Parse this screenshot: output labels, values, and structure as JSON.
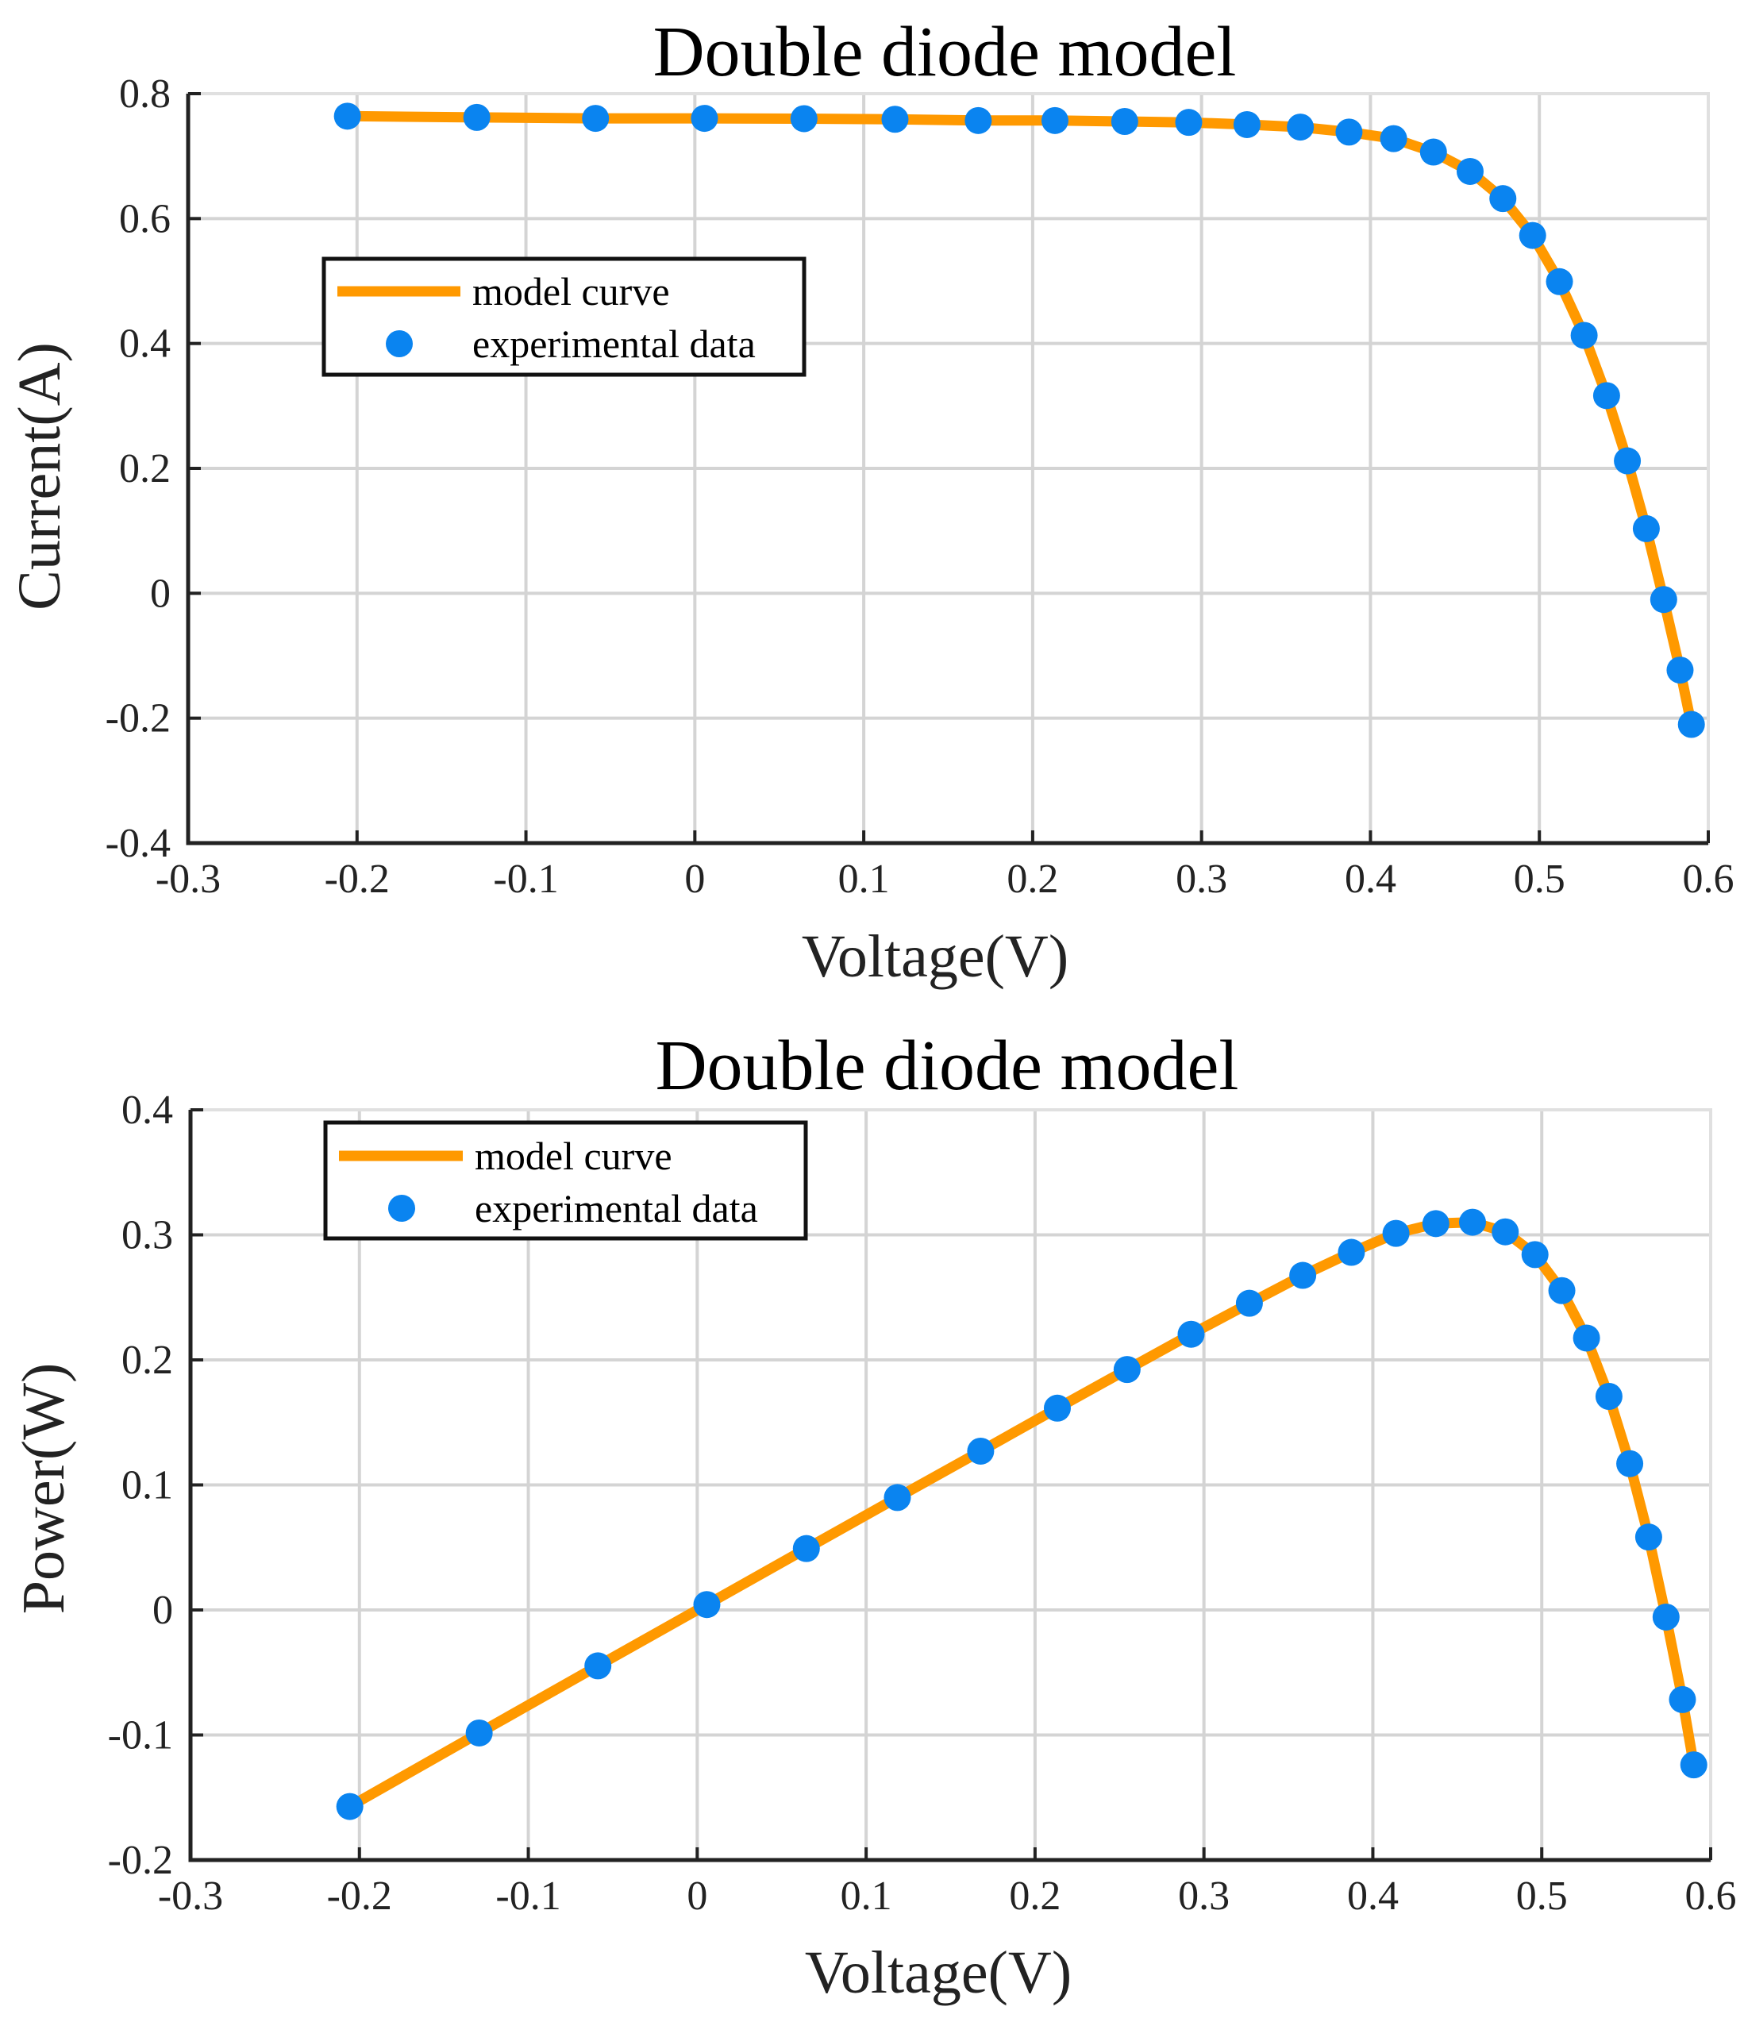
{
  "colors": {
    "curve": "#ff9900",
    "points": "#0a84f0"
  },
  "chart_data": [
    {
      "type": "line",
      "title": "Double diode model",
      "xlabel": "Voltage(V)",
      "ylabel": "Current(A)",
      "xlim": [
        -0.3,
        0.6
      ],
      "ylim": [
        -0.4,
        0.8
      ],
      "xticks": [
        -0.3,
        -0.2,
        -0.1,
        0,
        0.1,
        0.2,
        0.3,
        0.4,
        0.5,
        0.6
      ],
      "yticks": [
        -0.4,
        -0.2,
        0,
        0.2,
        0.4,
        0.6,
        0.8
      ],
      "xtick_labels": [
        "-0.3",
        "-0.2",
        "-0.1",
        "0",
        "0.1",
        "0.2",
        "0.3",
        "0.4",
        "0.5",
        "0.6"
      ],
      "ytick_labels": [
        "-0.4",
        "-0.2",
        "0",
        "0.2",
        "0.4",
        "0.6",
        "0.8"
      ],
      "grid": true,
      "legend_position": "upper-left",
      "legend": [
        "model curve",
        "experimental data"
      ],
      "series": [
        {
          "name": "model curve",
          "x": [
            -0.2057,
            -0.1291,
            -0.0588,
            0.0057,
            0.0646,
            0.1185,
            0.1678,
            0.2132,
            0.2545,
            0.2924,
            0.3269,
            0.3585,
            0.3873,
            0.4137,
            0.4373,
            0.459,
            0.4784,
            0.496,
            0.5119,
            0.5265,
            0.5398,
            0.5521,
            0.5633,
            0.5736,
            0.5833,
            0.59
          ],
          "y": [
            0.764,
            0.762,
            0.7605,
            0.7605,
            0.76,
            0.759,
            0.757,
            0.757,
            0.7555,
            0.754,
            0.7505,
            0.7465,
            0.7385,
            0.728,
            0.7065,
            0.6755,
            0.632,
            0.573,
            0.499,
            0.413,
            0.3165,
            0.212,
            0.1035,
            -0.01,
            -0.123,
            -0.21
          ]
        },
        {
          "name": "experimental data",
          "x": [
            -0.2057,
            -0.1291,
            -0.0588,
            0.0057,
            0.0646,
            0.1185,
            0.1678,
            0.2132,
            0.2545,
            0.2924,
            0.3269,
            0.3585,
            0.3873,
            0.4137,
            0.4373,
            0.459,
            0.4784,
            0.496,
            0.5119,
            0.5265,
            0.5398,
            0.5521,
            0.5633,
            0.5736,
            0.5833,
            0.59
          ],
          "y": [
            0.764,
            0.762,
            0.7605,
            0.7605,
            0.76,
            0.759,
            0.757,
            0.757,
            0.7555,
            0.754,
            0.7505,
            0.7465,
            0.7385,
            0.728,
            0.7065,
            0.6755,
            0.632,
            0.573,
            0.499,
            0.413,
            0.3165,
            0.212,
            0.1035,
            -0.01,
            -0.123,
            -0.21
          ]
        }
      ]
    },
    {
      "type": "line",
      "title": "Double diode model",
      "xlabel": "Voltage(V)",
      "ylabel": "Power(W)",
      "xlim": [
        -0.3,
        0.6
      ],
      "ylim": [
        -0.2,
        0.4
      ],
      "xticks": [
        -0.3,
        -0.2,
        -0.1,
        0,
        0.1,
        0.2,
        0.3,
        0.4,
        0.5,
        0.6
      ],
      "yticks": [
        -0.2,
        -0.1,
        0,
        0.1,
        0.2,
        0.3,
        0.4
      ],
      "xtick_labels": [
        "-0.3",
        "-0.2",
        "-0.1",
        "0",
        "0.1",
        "0.2",
        "0.3",
        "0.4",
        "0.5",
        "0.6"
      ],
      "ytick_labels": [
        "-0.2",
        "-0.1",
        "0",
        "0.1",
        "0.2",
        "0.3",
        "0.4"
      ],
      "grid": true,
      "legend_position": "upper-left",
      "legend": [
        "model curve",
        "experimental data"
      ],
      "series": [
        {
          "name": "model curve",
          "x": [
            -0.2057,
            -0.1291,
            -0.0588,
            0.0057,
            0.0646,
            0.1185,
            0.1678,
            0.2132,
            0.2545,
            0.2924,
            0.3269,
            0.3585,
            0.3873,
            0.4137,
            0.4373,
            0.459,
            0.4784,
            0.496,
            0.5119,
            0.5265,
            0.5398,
            0.5521,
            0.5633,
            0.5736,
            0.5833,
            0.59
          ],
          "y": [
            -0.1572,
            -0.0984,
            -0.0447,
            0.0043,
            0.0491,
            0.0899,
            0.127,
            0.1614,
            0.1923,
            0.2205,
            0.2453,
            0.2676,
            0.286,
            0.3012,
            0.309,
            0.3101,
            0.3024,
            0.2842,
            0.2554,
            0.2175,
            0.1708,
            0.117,
            0.0583,
            -0.0057,
            -0.0717,
            -0.1239
          ]
        },
        {
          "name": "experimental data",
          "x": [
            -0.2057,
            -0.1291,
            -0.0588,
            0.0057,
            0.0646,
            0.1185,
            0.1678,
            0.2132,
            0.2545,
            0.2924,
            0.3269,
            0.3585,
            0.3873,
            0.4137,
            0.4373,
            0.459,
            0.4784,
            0.496,
            0.5119,
            0.5265,
            0.5398,
            0.5521,
            0.5633,
            0.5736,
            0.5833,
            0.59
          ],
          "y": [
            -0.1572,
            -0.0984,
            -0.0447,
            0.0043,
            0.0491,
            0.0899,
            0.127,
            0.1614,
            0.1923,
            0.2205,
            0.2453,
            0.2676,
            0.286,
            0.3012,
            0.309,
            0.3101,
            0.3024,
            0.2842,
            0.2554,
            0.2175,
            0.1708,
            0.117,
            0.0583,
            -0.0057,
            -0.0717,
            -0.1239
          ]
        }
      ]
    }
  ]
}
